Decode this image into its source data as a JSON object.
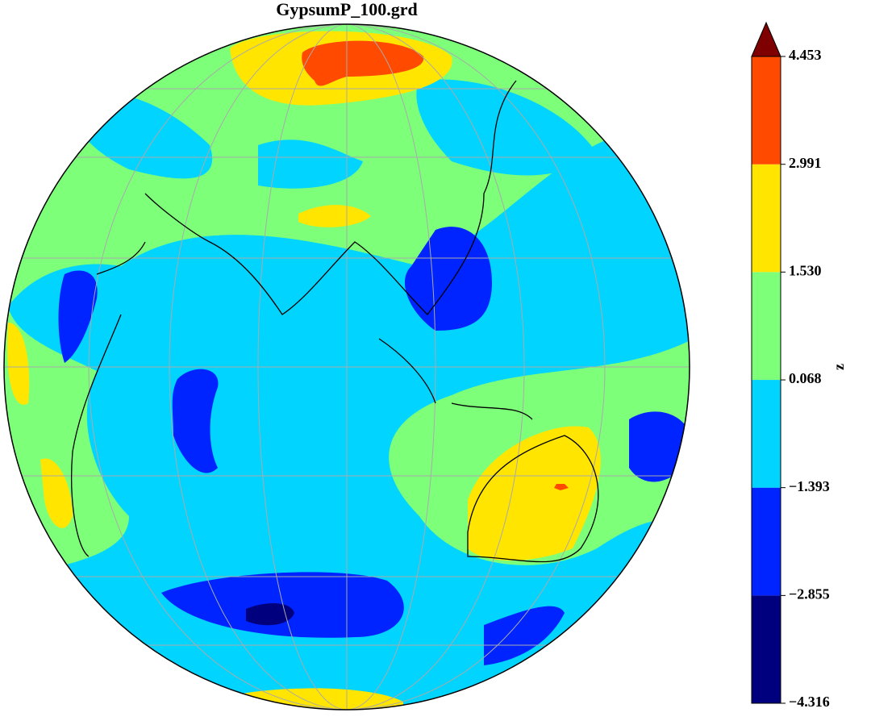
{
  "chart_data": {
    "type": "contour-map",
    "title": "GypsumP_100.grd",
    "colorbar": {
      "label": "z",
      "ylim": [
        -4.316,
        4.453
      ],
      "yticks": [
        {
          "value": -4.316,
          "label": "−4.316"
        },
        {
          "value": -2.855,
          "label": "−2.855"
        },
        {
          "value": -1.393,
          "label": "−1.393"
        },
        0.068,
        {
          "value": 1.53,
          "label": "1.530"
        },
        2.991,
        4.453
      ],
      "colors": [
        "#00007f",
        "#0024ff",
        "#00d4ff",
        "#7dff7a",
        "#ffe500",
        "#ff4a00"
      ],
      "extend_color": "#7f0000"
    }
  }
}
